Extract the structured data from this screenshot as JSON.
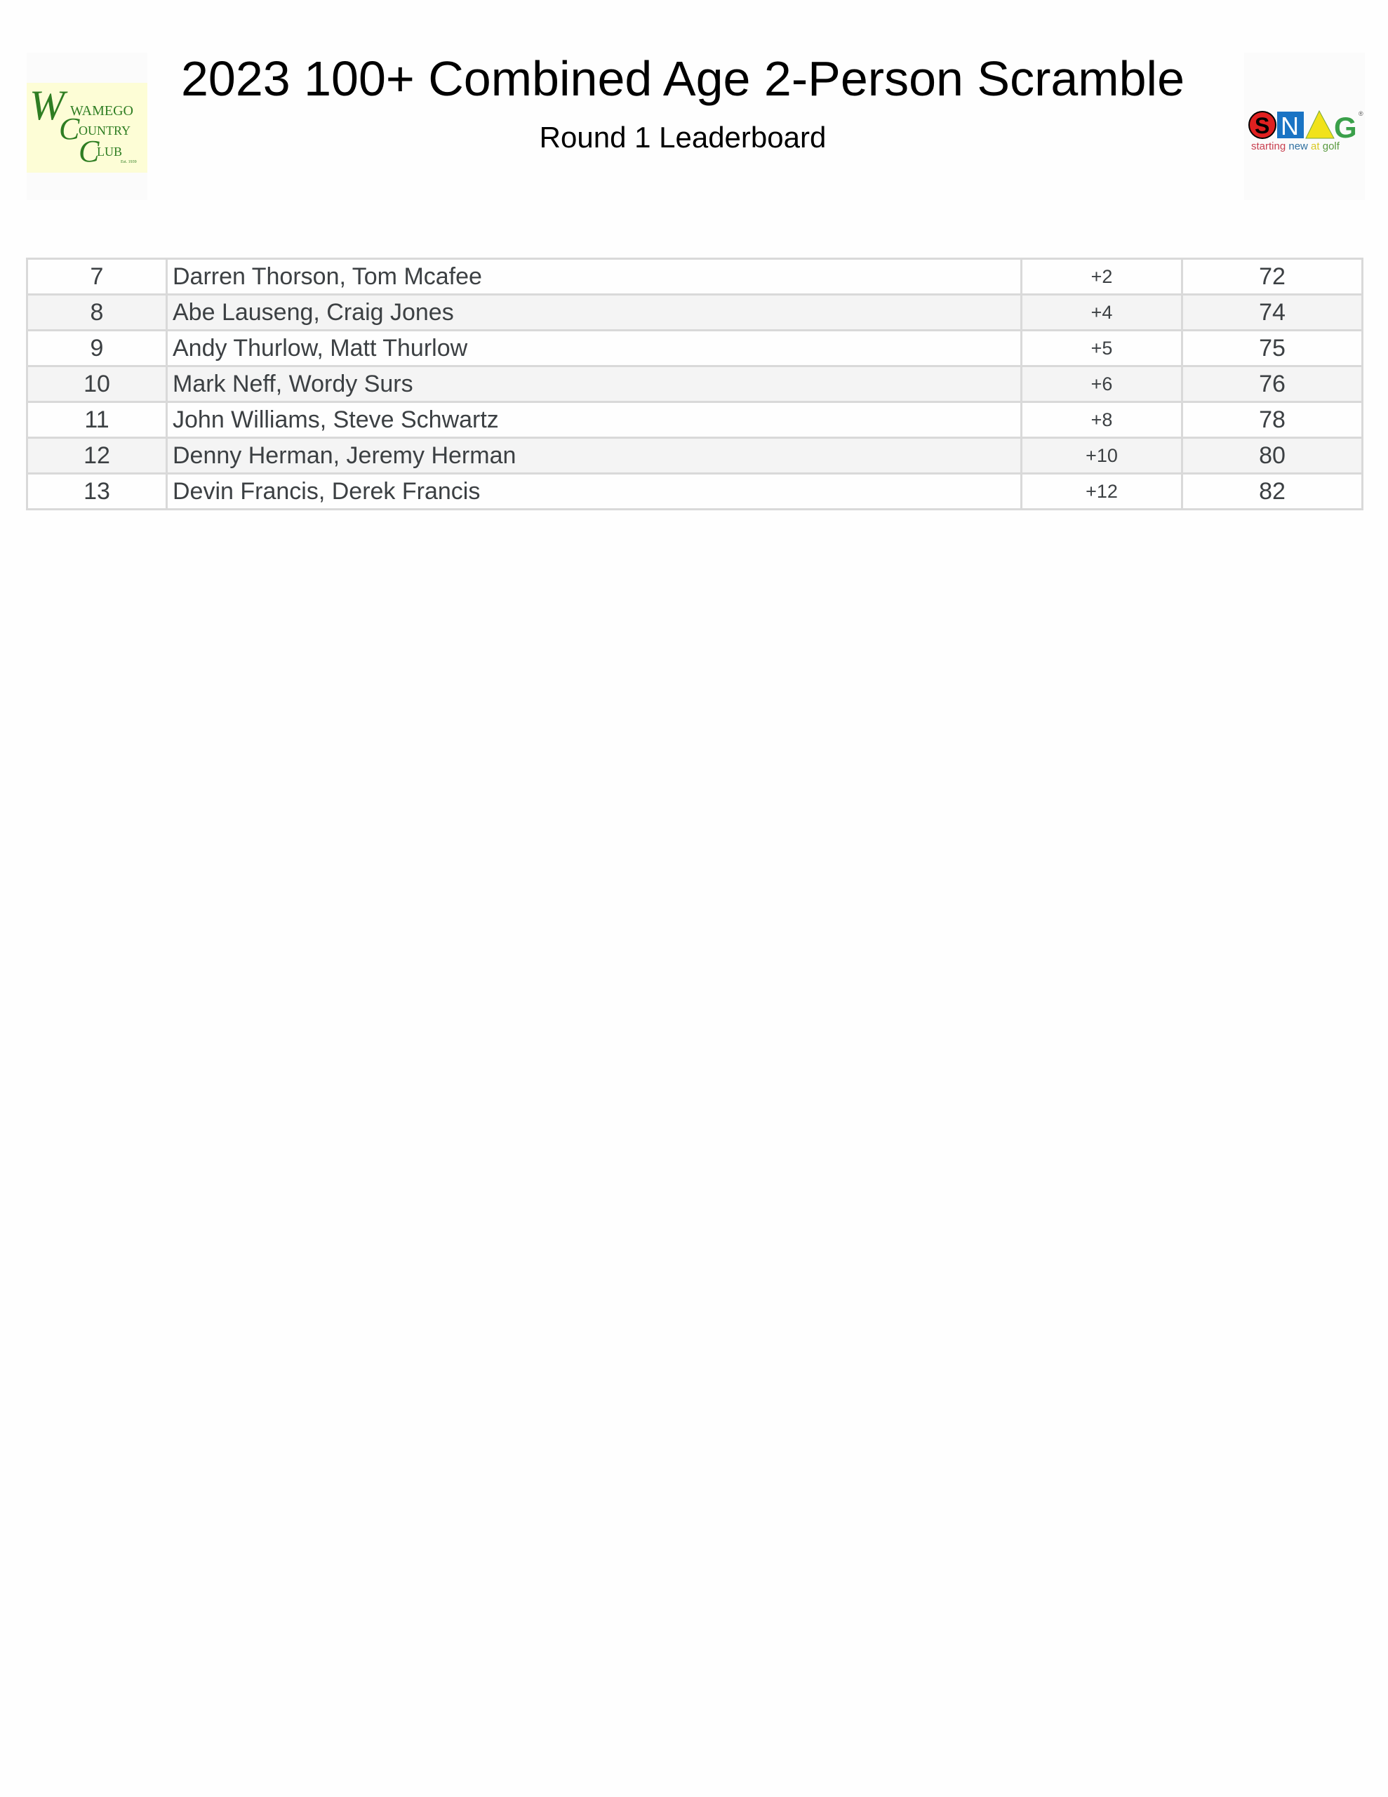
{
  "header": {
    "title": "2023 100+ Combined Age 2-Person Scramble",
    "subtitle": "Round 1 Leaderboard",
    "left_logo": {
      "text": [
        "WAMEGO",
        "COUNTRY",
        "CLUB"
      ],
      "est": "Est. 1939",
      "color": "#2e7d22"
    },
    "right_logo": {
      "letters": [
        "S",
        "N",
        "A",
        "G"
      ],
      "tagline": "starting new at golf"
    }
  },
  "leaderboard": {
    "rows": [
      {
        "rank": "7",
        "team": "Darren Thorson, Tom Mcafee",
        "to_par": "+2",
        "score": "72"
      },
      {
        "rank": "8",
        "team": "Abe Lauseng, Craig Jones",
        "to_par": "+4",
        "score": "74"
      },
      {
        "rank": "9",
        "team": "Andy Thurlow, Matt Thurlow",
        "to_par": "+5",
        "score": "75"
      },
      {
        "rank": "10",
        "team": "Mark Neff, Wordy Surs",
        "to_par": "+6",
        "score": "76"
      },
      {
        "rank": "11",
        "team": "John Williams, Steve Schwartz",
        "to_par": "+8",
        "score": "78"
      },
      {
        "rank": "12",
        "team": "Denny Herman, Jeremy Herman",
        "to_par": "+10",
        "score": "80"
      },
      {
        "rank": "13",
        "team": "Devin Francis, Derek Francis",
        "to_par": "+12",
        "score": "82"
      }
    ]
  }
}
